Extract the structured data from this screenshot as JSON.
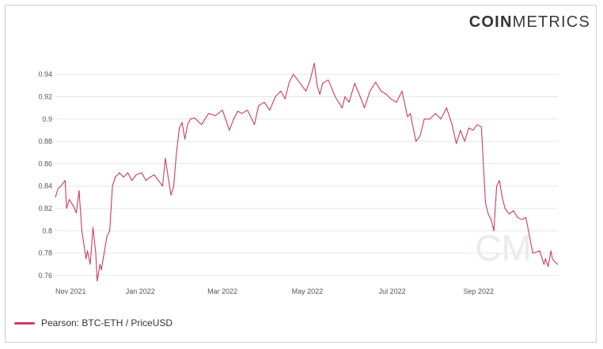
{
  "brand": {
    "bold": "COIN",
    "light": "METRICS",
    "watermark": "CM"
  },
  "colors": {
    "series": "#cf3a63",
    "grid": "#e6e6e6",
    "watermark": "#e9ebef"
  },
  "chart_data": {
    "type": "line",
    "title": "",
    "xlabel": "",
    "ylabel": "",
    "x_ticks": [
      "Nov 2021",
      "Jan 2022",
      "Mar 2022",
      "May 2022",
      "Jul 2022",
      "Sep 2022"
    ],
    "y_ticks": [
      "0.76",
      "0.78",
      "0.8",
      "0.82",
      "0.84",
      "0.86",
      "0.88",
      "0.9",
      "0.92",
      "0.94"
    ],
    "ylim": [
      0.755,
      0.95
    ],
    "xlim": [
      "2021-11-01",
      "2022-10-28"
    ],
    "grid": true,
    "legend_position": "bottom-left",
    "series": [
      {
        "name": "Pearson: BTC-ETH / PriceUSD",
        "x": [
          "2021-11-01",
          "2021-11-03",
          "2021-11-05",
          "2021-11-08",
          "2021-11-09",
          "2021-11-11",
          "2021-11-14",
          "2021-11-16",
          "2021-11-18",
          "2021-11-20",
          "2021-11-23",
          "2021-11-24",
          "2021-11-26",
          "2021-11-28",
          "2021-11-30",
          "2021-12-01",
          "2021-12-03",
          "2021-12-04",
          "2021-12-06",
          "2021-12-08",
          "2021-12-10",
          "2021-12-12",
          "2021-12-14",
          "2021-12-17",
          "2021-12-20",
          "2021-12-23",
          "2021-12-26",
          "2021-12-29",
          "2022-01-02",
          "2022-01-05",
          "2022-01-08",
          "2022-01-11",
          "2022-01-14",
          "2022-01-17",
          "2022-01-19",
          "2022-01-21",
          "2022-01-23",
          "2022-01-25",
          "2022-01-27",
          "2022-01-29",
          "2022-01-31",
          "2022-02-02",
          "2022-02-04",
          "2022-02-06",
          "2022-02-09",
          "2022-02-14",
          "2022-02-19",
          "2022-02-24",
          "2022-03-01",
          "2022-03-06",
          "2022-03-09",
          "2022-03-12",
          "2022-03-15",
          "2022-03-19",
          "2022-03-24",
          "2022-03-27",
          "2022-03-31",
          "2022-04-04",
          "2022-04-08",
          "2022-04-12",
          "2022-04-15",
          "2022-04-18",
          "2022-04-21",
          "2022-04-24",
          "2022-04-27",
          "2022-04-30",
          "2022-05-03",
          "2022-05-06",
          "2022-05-08",
          "2022-05-10",
          "2022-05-12",
          "2022-05-16",
          "2022-05-21",
          "2022-05-26",
          "2022-05-28",
          "2022-05-31",
          "2022-06-04",
          "2022-06-08",
          "2022-06-11",
          "2022-06-15",
          "2022-06-19",
          "2022-06-23",
          "2022-06-27",
          "2022-06-30",
          "2022-07-04",
          "2022-07-08",
          "2022-07-12",
          "2022-07-14",
          "2022-07-18",
          "2022-07-21",
          "2022-07-24",
          "2022-07-28",
          "2022-08-01",
          "2022-08-05",
          "2022-08-09",
          "2022-08-13",
          "2022-08-16",
          "2022-08-19",
          "2022-08-22",
          "2022-08-25",
          "2022-08-28",
          "2022-08-31",
          "2022-09-03",
          "2022-09-06",
          "2022-09-08",
          "2022-09-10",
          "2022-09-12",
          "2022-09-14",
          "2022-09-16",
          "2022-09-18",
          "2022-09-20",
          "2022-09-23",
          "2022-09-26",
          "2022-09-29",
          "2022-10-02",
          "2022-10-05",
          "2022-10-10",
          "2022-10-15",
          "2022-10-18",
          "2022-10-19",
          "2022-10-21",
          "2022-10-23",
          "2022-10-24",
          "2022-10-26",
          "2022-10-28"
        ],
        "values": [
          0.83,
          0.838,
          0.84,
          0.845,
          0.82,
          0.828,
          0.822,
          0.816,
          0.836,
          0.8,
          0.775,
          0.782,
          0.77,
          0.803,
          0.78,
          0.755,
          0.77,
          0.765,
          0.78,
          0.795,
          0.8,
          0.84,
          0.848,
          0.852,
          0.848,
          0.852,
          0.845,
          0.85,
          0.852,
          0.845,
          0.848,
          0.85,
          0.845,
          0.84,
          0.865,
          0.848,
          0.832,
          0.84,
          0.87,
          0.892,
          0.897,
          0.882,
          0.895,
          0.9,
          0.901,
          0.895,
          0.905,
          0.903,
          0.908,
          0.89,
          0.9,
          0.907,
          0.905,
          0.908,
          0.895,
          0.912,
          0.915,
          0.908,
          0.92,
          0.925,
          0.918,
          0.933,
          0.94,
          0.935,
          0.93,
          0.925,
          0.935,
          0.95,
          0.93,
          0.922,
          0.932,
          0.935,
          0.92,
          0.91,
          0.92,
          0.915,
          0.932,
          0.92,
          0.91,
          0.925,
          0.933,
          0.925,
          0.922,
          0.918,
          0.915,
          0.925,
          0.902,
          0.905,
          0.88,
          0.885,
          0.9,
          0.9,
          0.905,
          0.9,
          0.91,
          0.895,
          0.878,
          0.89,
          0.88,
          0.892,
          0.89,
          0.895,
          0.893,
          0.825,
          0.815,
          0.81,
          0.8,
          0.84,
          0.845,
          0.83,
          0.82,
          0.815,
          0.818,
          0.812,
          0.81,
          0.812,
          0.78,
          0.782,
          0.77,
          0.775,
          0.768,
          0.782,
          0.775,
          0.772,
          0.77
        ]
      }
    ]
  }
}
